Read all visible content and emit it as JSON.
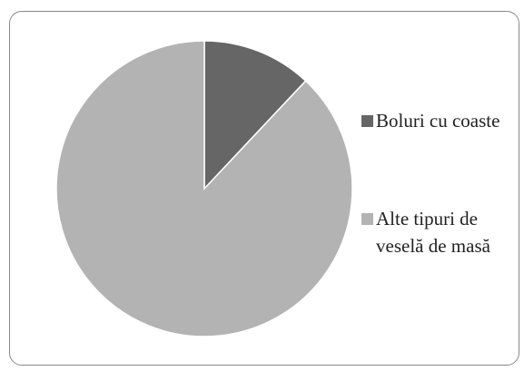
{
  "chart_data": {
    "type": "pie",
    "categories": [
      "Boluri cu coaste",
      "Alte tipuri de veselă de masă"
    ],
    "values": [
      12,
      88
    ],
    "colors": [
      "#666666",
      "#b3b3b3"
    ],
    "legend": "right"
  }
}
